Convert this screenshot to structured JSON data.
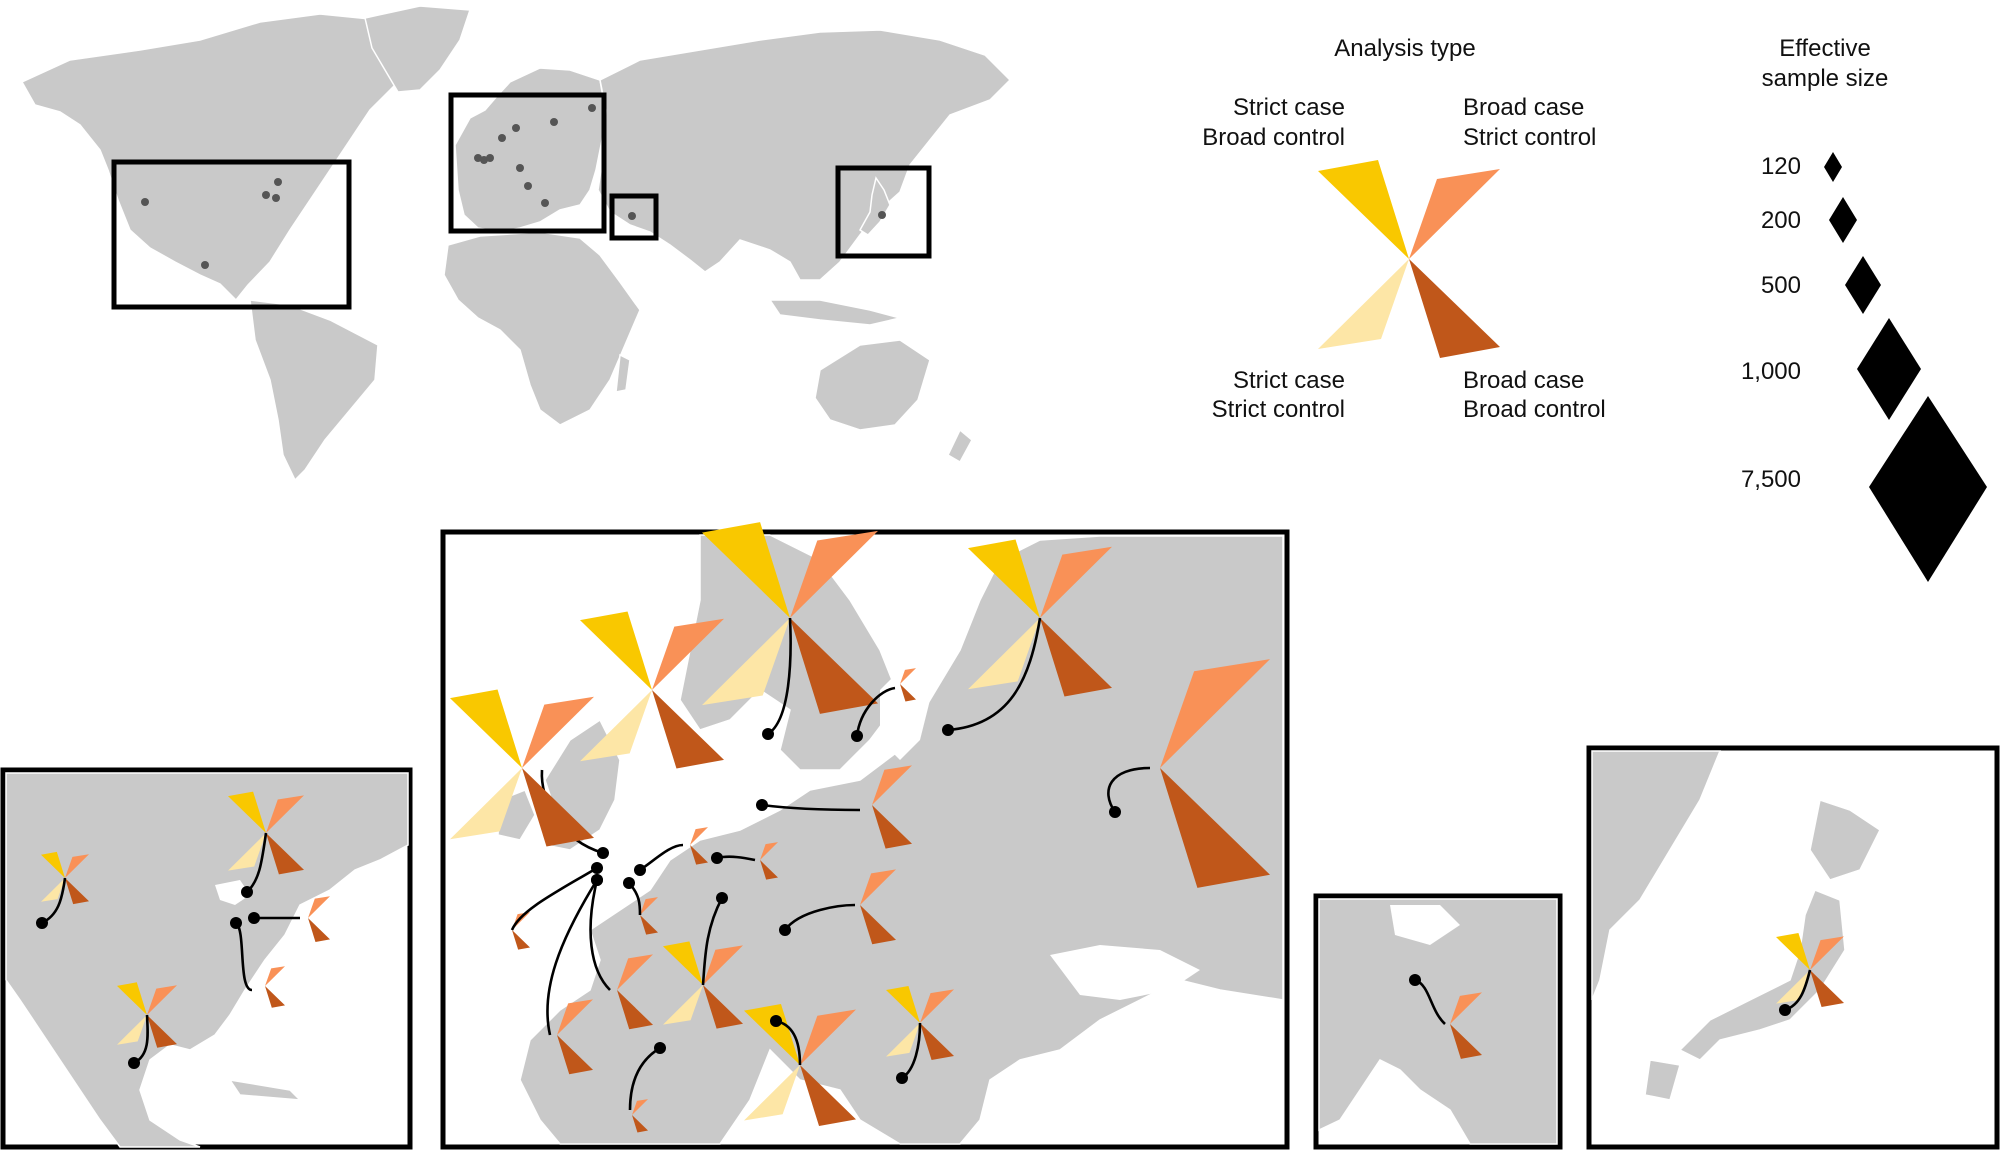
{
  "legend": {
    "analysis_title": "Analysis type",
    "quadrants": {
      "top_left": {
        "line1": "Strict case",
        "line2": "Broad control",
        "color": "#f9c800"
      },
      "top_right": {
        "line1": "Broad case",
        "line2": "Strict control",
        "color": "#f99157"
      },
      "bottom_left": {
        "line1": "Strict case",
        "line2": "Strict control",
        "color": "#fde6a6"
      },
      "bottom_right": {
        "line1": "Broad case",
        "line2": "Broad control",
        "color": "#c0571a"
      }
    },
    "size_title_line1": "Effective",
    "size_title_line2": "sample size",
    "sizes": [
      {
        "label": "120",
        "value": 120
      },
      {
        "label": "200",
        "value": 200
      },
      {
        "label": "500",
        "value": 500
      },
      {
        "label": "1,000",
        "value": 1000
      },
      {
        "label": "7,500",
        "value": 7500
      }
    ]
  },
  "colors": {
    "land": "#c9c9c9",
    "frame": "#000000",
    "strict_case_broad_control": "#f9c800",
    "broad_case_strict_control": "#f99157",
    "strict_case_strict_control": "#fde6a6",
    "broad_case_broad_control": "#c0571a"
  },
  "insets": [
    "north-america",
    "europe",
    "middle-east",
    "japan"
  ]
}
